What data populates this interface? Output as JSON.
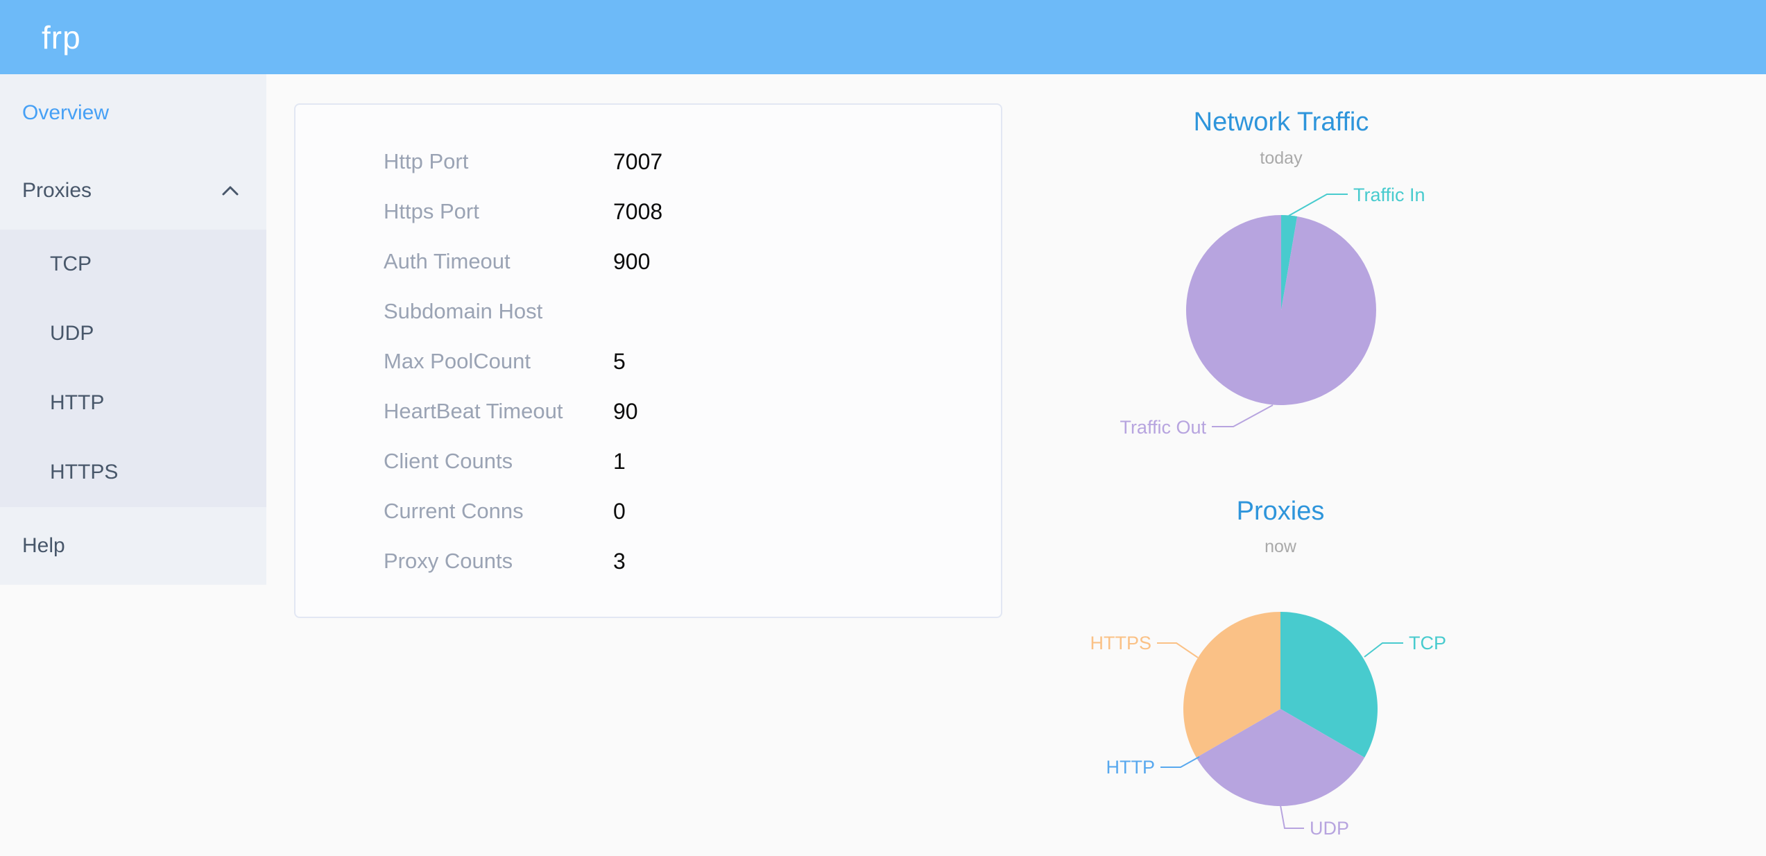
{
  "header": {
    "logo": "frp"
  },
  "theme": {
    "header_bg": "#6dbaf8",
    "active_item_color": "#46a0f5",
    "sidebar_item_color": "#48576a",
    "title_color": "#2e95db",
    "subtitle_color": "#a9a9a9"
  },
  "sidebar": {
    "items": [
      {
        "label": "Overview",
        "active": true
      },
      {
        "label": "Proxies",
        "expanded": true
      },
      {
        "label": "TCP"
      },
      {
        "label": "UDP"
      },
      {
        "label": "HTTP"
      },
      {
        "label": "HTTPS"
      },
      {
        "label": "Help"
      }
    ]
  },
  "overview_card": {
    "rows": [
      {
        "label": "Http Port",
        "value": "7007"
      },
      {
        "label": "Https Port",
        "value": "7008"
      },
      {
        "label": "Auth Timeout",
        "value": "900"
      },
      {
        "label": "Subdomain Host",
        "value": ""
      },
      {
        "label": "Max PoolCount",
        "value": "5"
      },
      {
        "label": "HeartBeat Timeout",
        "value": "90"
      },
      {
        "label": "Client Counts",
        "value": "1"
      },
      {
        "label": "Current Conns",
        "value": "0"
      },
      {
        "label": "Proxy Counts",
        "value": "3"
      }
    ]
  },
  "chart_data": [
    {
      "type": "pie",
      "title": "Network Traffic",
      "subtitle": "today",
      "labels": [
        "Traffic In",
        "Traffic Out"
      ],
      "values": [
        2.7,
        97.3
      ],
      "unit": "percent-of-pie",
      "colors": [
        "#48cbce",
        "#b7a4df"
      ],
      "label_style": "outside-callout",
      "legend_position": "none"
    },
    {
      "type": "pie",
      "title": "Proxies",
      "subtitle": "now",
      "labels": [
        "TCP",
        "UDP",
        "HTTP",
        "HTTPS"
      ],
      "values": [
        1,
        1,
        0,
        1
      ],
      "unit": "proxy-count",
      "colors": [
        "#48cbce",
        "#b7a4df",
        "#58a8ee",
        "#fac186"
      ],
      "label_style": "outside-callout",
      "legend_position": "none"
    }
  ]
}
